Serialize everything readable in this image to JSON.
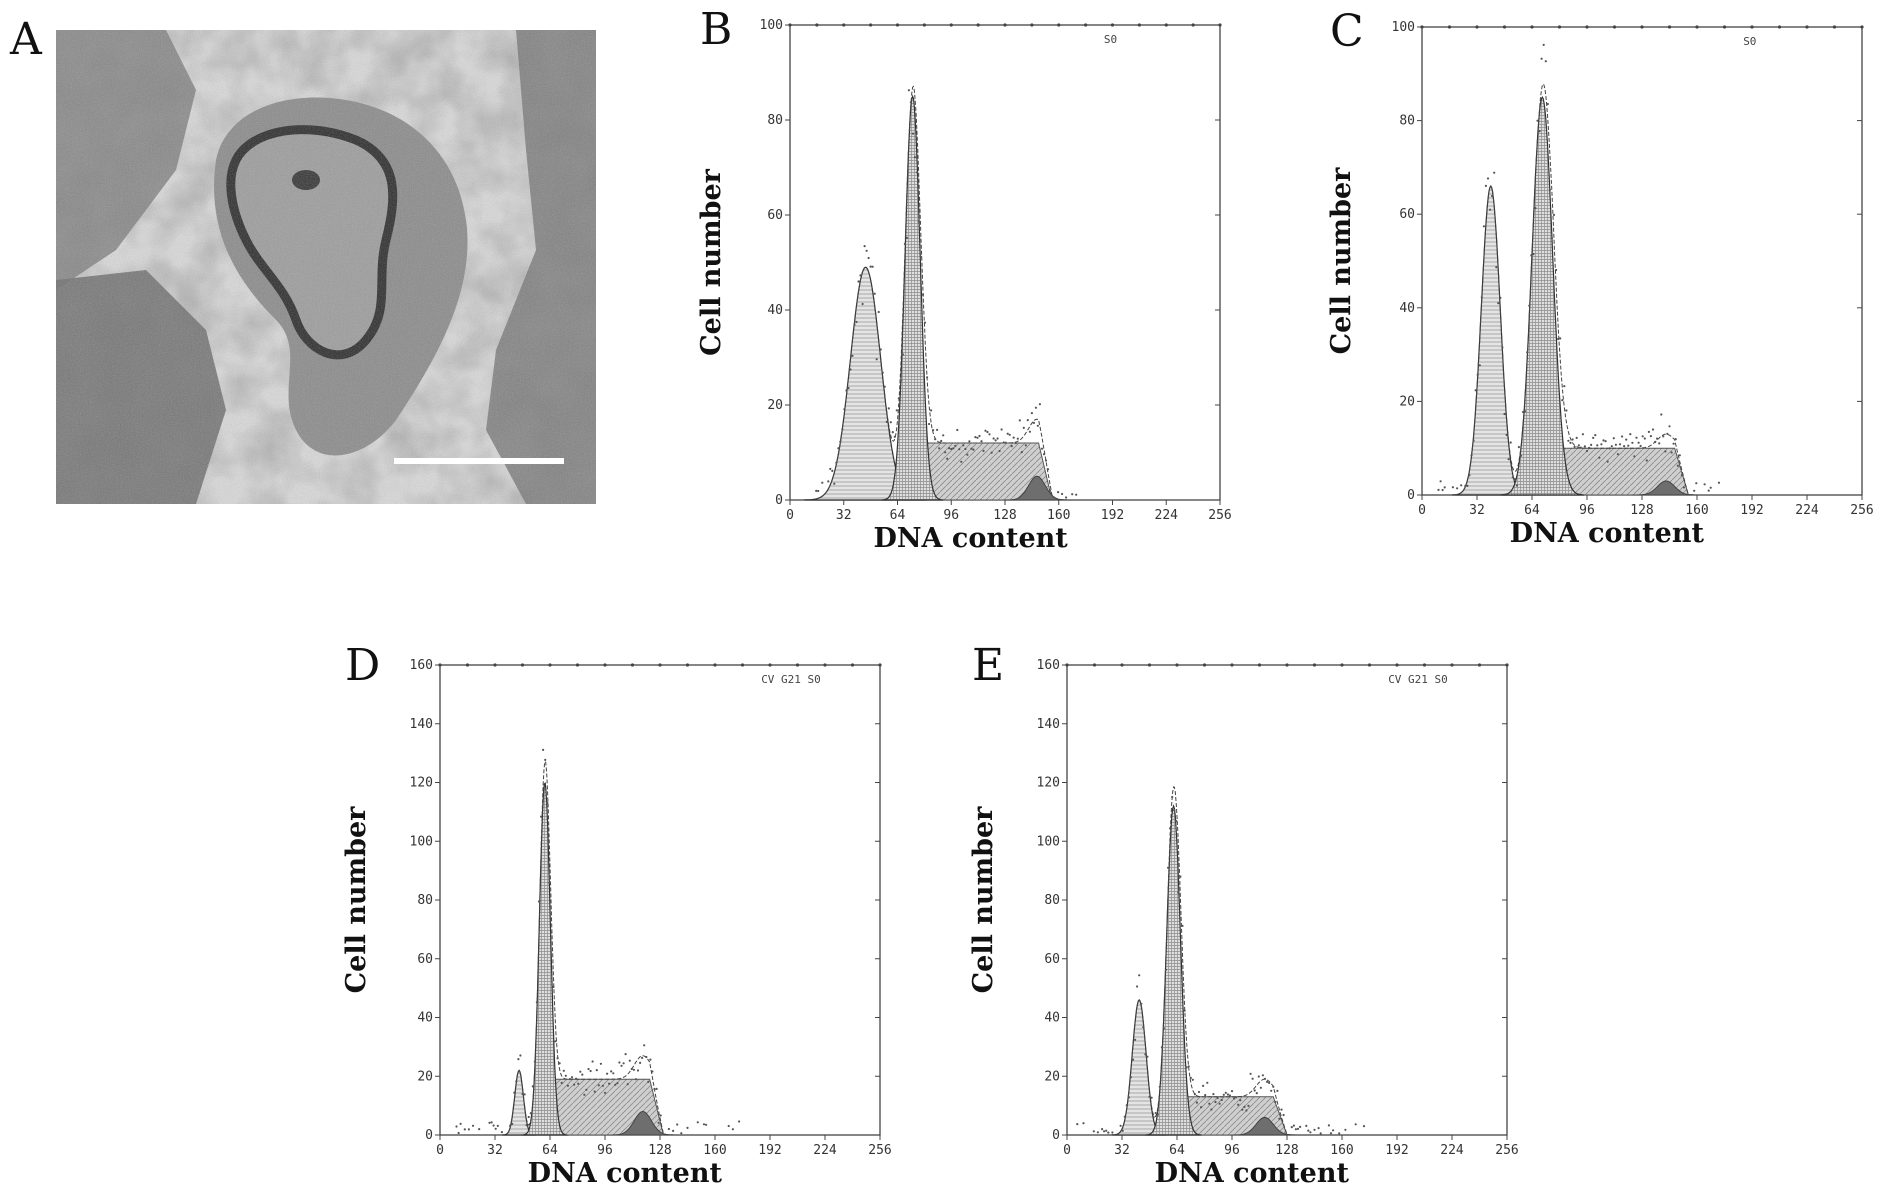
{
  "panel_letters": [
    "A",
    "B",
    "C",
    "D",
    "E"
  ],
  "chart_data": [
    {
      "type": "area",
      "panel": "B",
      "xlabel": "DNA content",
      "ylabel": "Cell number",
      "inset_label": "S0",
      "x_ticks": [
        0,
        32,
        64,
        96,
        128,
        160,
        192,
        224,
        256
      ],
      "y_ticks": [
        0,
        20,
        40,
        60,
        80,
        100
      ],
      "xlim": [
        0,
        256
      ],
      "ylim": [
        0,
        100
      ],
      "g1_peak": {
        "center": 45,
        "sigma": 9,
        "height": 49
      },
      "g2_peak": {
        "center": 73,
        "sigma": 4.5,
        "height": 85
      },
      "s_phase": {
        "start": 72,
        "end": 148,
        "height": 12
      },
      "apoptotic": {
        "center": 147,
        "sigma": 5,
        "height": 5
      }
    },
    {
      "type": "area",
      "panel": "C",
      "xlabel": "DNA content",
      "ylabel": "Cell number",
      "inset_label": "S0",
      "x_ticks": [
        0,
        32,
        64,
        96,
        128,
        160,
        192,
        224,
        256
      ],
      "y_ticks": [
        0,
        20,
        40,
        60,
        80,
        100
      ],
      "xlim": [
        0,
        256
      ],
      "ylim": [
        0,
        100
      ],
      "g1_peak": {
        "center": 40,
        "sigma": 5.5,
        "height": 66
      },
      "g2_peak": {
        "center": 70,
        "sigma": 6,
        "height": 85
      },
      "s_phase": {
        "start": 68,
        "end": 147,
        "height": 10
      },
      "apoptotic": {
        "center": 142,
        "sigma": 5,
        "height": 3
      }
    },
    {
      "type": "area",
      "panel": "D",
      "xlabel": "DNA content",
      "ylabel": "Cell number",
      "inset_label": "CV G21 S0",
      "x_ticks": [
        0,
        32,
        64,
        96,
        128,
        160,
        192,
        224,
        256
      ],
      "y_ticks": [
        0,
        20,
        40,
        60,
        80,
        100,
        120,
        140,
        160
      ],
      "xlim": [
        0,
        256
      ],
      "ylim": [
        0,
        160
      ],
      "g1_peak": {
        "center": 46,
        "sigma": 2.5,
        "height": 22
      },
      "g2_peak": {
        "center": 61,
        "sigma": 3.2,
        "height": 120
      },
      "s_phase": {
        "start": 58,
        "end": 122,
        "height": 19
      },
      "apoptotic": {
        "center": 118,
        "sigma": 5,
        "height": 8
      }
    },
    {
      "type": "area",
      "panel": "E",
      "xlabel": "DNA content",
      "ylabel": "Cell number",
      "inset_label": "CV G21 S0",
      "x_ticks": [
        0,
        32,
        64,
        96,
        128,
        160,
        192,
        224,
        256
      ],
      "y_ticks": [
        0,
        20,
        40,
        60,
        80,
        100,
        120,
        140,
        160
      ],
      "xlim": [
        0,
        256
      ],
      "ylim": [
        0,
        160
      ],
      "g1_peak": {
        "center": 42,
        "sigma": 4,
        "height": 46
      },
      "g2_peak": {
        "center": 62,
        "sigma": 4,
        "height": 112
      },
      "s_phase": {
        "start": 58,
        "end": 120,
        "height": 13
      },
      "apoptotic": {
        "center": 115,
        "sigma": 5,
        "height": 6
      }
    }
  ]
}
